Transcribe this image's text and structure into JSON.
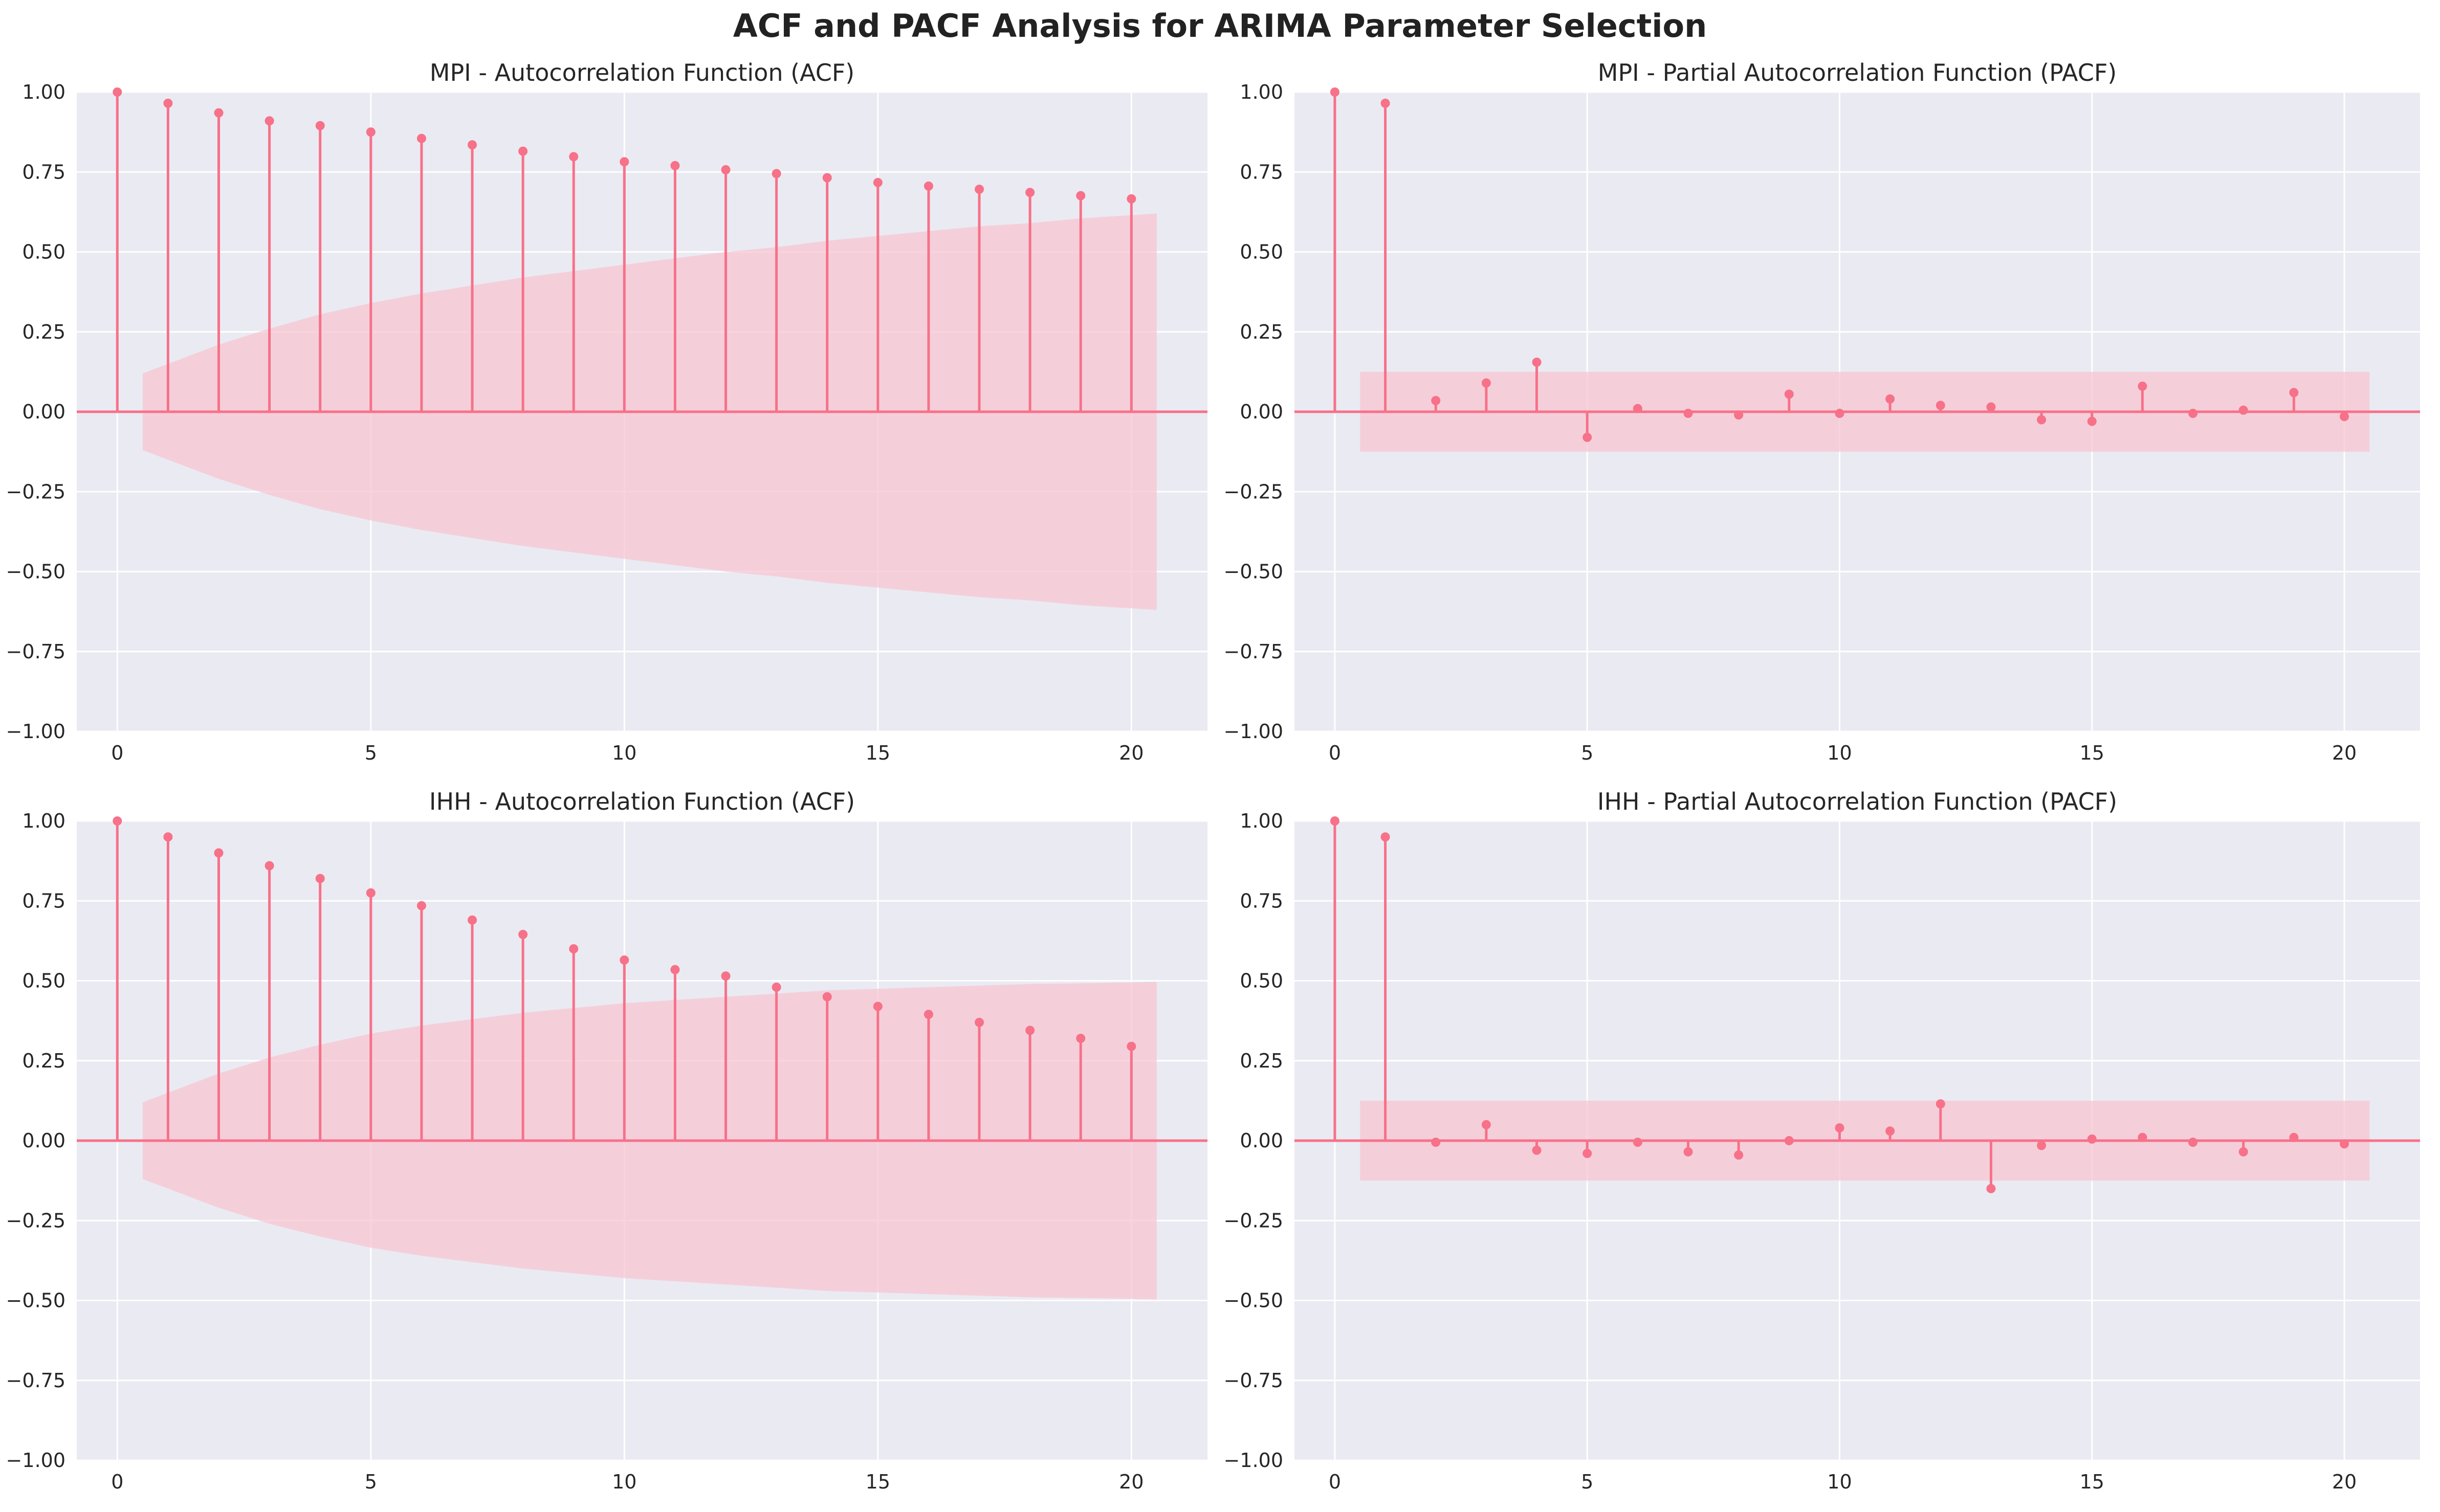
{
  "title": "ACF and PACF Analysis for ARIMA Parameter Selection",
  "colors": {
    "stem": "#f77189",
    "band": "#f7c5d2",
    "axes_bg": "#eaeaf2",
    "grid": "#ffffff"
  },
  "chart_data": [
    {
      "type": "stem",
      "title": "MPI - Autocorrelation Function (ACF)",
      "xlabel": "",
      "ylabel": "",
      "xlim": [
        -0.8,
        21.5
      ],
      "ylim": [
        -1.0,
        1.0
      ],
      "x_ticks": [
        0,
        5,
        10,
        15,
        20
      ],
      "y_ticks": [
        -1.0,
        -0.75,
        -0.5,
        -0.25,
        0.0,
        0.25,
        0.5,
        0.75,
        1.0
      ],
      "y_tick_labels": [
        "−1.00",
        "−0.75",
        "−0.50",
        "−0.25",
        "0.00",
        "0.25",
        "0.50",
        "0.75",
        "1.00"
      ],
      "x_tick_labels": [
        "0",
        "5",
        "10",
        "15",
        "20"
      ],
      "grid": true,
      "x": [
        0,
        1,
        2,
        3,
        4,
        5,
        6,
        7,
        8,
        9,
        10,
        11,
        12,
        13,
        14,
        15,
        16,
        17,
        18,
        19,
        20
      ],
      "values": [
        1.0,
        0.965,
        0.935,
        0.91,
        0.895,
        0.875,
        0.855,
        0.835,
        0.815,
        0.798,
        0.782,
        0.77,
        0.757,
        0.745,
        0.732,
        0.717,
        0.706,
        0.696,
        0.686,
        0.676,
        0.666
      ],
      "confidence_band": {
        "x": [
          0.5,
          1,
          2,
          3,
          4,
          5,
          6,
          7,
          8,
          9,
          10,
          11,
          12,
          13,
          14,
          15,
          16,
          17,
          18,
          19,
          20,
          20.5
        ],
        "upper": [
          0.12,
          0.15,
          0.21,
          0.26,
          0.305,
          0.34,
          0.37,
          0.395,
          0.42,
          0.44,
          0.46,
          0.48,
          0.5,
          0.515,
          0.535,
          0.55,
          0.565,
          0.58,
          0.59,
          0.605,
          0.615,
          0.62
        ]
      }
    },
    {
      "type": "stem",
      "title": "MPI - Partial Autocorrelation Function (PACF)",
      "xlabel": "",
      "ylabel": "",
      "xlim": [
        -0.8,
        21.5
      ],
      "ylim": [
        -1.0,
        1.0
      ],
      "x_ticks": [
        0,
        5,
        10,
        15,
        20
      ],
      "y_ticks": [
        -1.0,
        -0.75,
        -0.5,
        -0.25,
        0.0,
        0.25,
        0.5,
        0.75,
        1.0
      ],
      "y_tick_labels": [
        "−1.00",
        "−0.75",
        "−0.50",
        "−0.25",
        "0.00",
        "0.25",
        "0.50",
        "0.75",
        "1.00"
      ],
      "x_tick_labels": [
        "0",
        "5",
        "10",
        "15",
        "20"
      ],
      "grid": true,
      "x": [
        0,
        1,
        2,
        3,
        4,
        5,
        6,
        7,
        8,
        9,
        10,
        11,
        12,
        13,
        14,
        15,
        16,
        17,
        18,
        19,
        20
      ],
      "values": [
        1.0,
        0.965,
        0.035,
        0.09,
        0.155,
        -0.08,
        0.01,
        -0.005,
        -0.01,
        0.055,
        -0.005,
        0.04,
        0.02,
        0.015,
        -0.025,
        -0.03,
        0.08,
        -0.005,
        0.005,
        0.06,
        -0.015
      ],
      "confidence_band": {
        "x": [
          0.5,
          20.5
        ],
        "upper": [
          0.125,
          0.125
        ]
      }
    },
    {
      "type": "stem",
      "title": "IHH - Autocorrelation Function (ACF)",
      "xlabel": "",
      "ylabel": "",
      "xlim": [
        -0.8,
        21.5
      ],
      "ylim": [
        -1.0,
        1.0
      ],
      "x_ticks": [
        0,
        5,
        10,
        15,
        20
      ],
      "y_ticks": [
        -1.0,
        -0.75,
        -0.5,
        -0.25,
        0.0,
        0.25,
        0.5,
        0.75,
        1.0
      ],
      "y_tick_labels": [
        "−1.00",
        "−0.75",
        "−0.50",
        "−0.25",
        "0.00",
        "0.25",
        "0.50",
        "0.75",
        "1.00"
      ],
      "x_tick_labels": [
        "0",
        "5",
        "10",
        "15",
        "20"
      ],
      "grid": true,
      "x": [
        0,
        1,
        2,
        3,
        4,
        5,
        6,
        7,
        8,
        9,
        10,
        11,
        12,
        13,
        14,
        15,
        16,
        17,
        18,
        19,
        20
      ],
      "values": [
        1.0,
        0.95,
        0.9,
        0.86,
        0.82,
        0.775,
        0.735,
        0.69,
        0.645,
        0.6,
        0.565,
        0.535,
        0.515,
        0.48,
        0.45,
        0.42,
        0.395,
        0.37,
        0.345,
        0.32,
        0.295
      ],
      "confidence_band": {
        "x": [
          0.5,
          1,
          2,
          3,
          4,
          5,
          6,
          7,
          8,
          9,
          10,
          11,
          12,
          13,
          14,
          15,
          16,
          17,
          18,
          19,
          20,
          20.5
        ],
        "upper": [
          0.12,
          0.15,
          0.21,
          0.26,
          0.3,
          0.335,
          0.36,
          0.38,
          0.4,
          0.415,
          0.43,
          0.44,
          0.45,
          0.46,
          0.47,
          0.475,
          0.48,
          0.485,
          0.49,
          0.492,
          0.495,
          0.497
        ]
      }
    },
    {
      "type": "stem",
      "title": "IHH - Partial Autocorrelation Function (PACF)",
      "xlabel": "",
      "ylabel": "",
      "xlim": [
        -0.8,
        21.5
      ],
      "ylim": [
        -1.0,
        1.0
      ],
      "x_ticks": [
        0,
        5,
        10,
        15,
        20
      ],
      "y_ticks": [
        -1.0,
        -0.75,
        -0.5,
        -0.25,
        0.0,
        0.25,
        0.5,
        0.75,
        1.0
      ],
      "y_tick_labels": [
        "−1.00",
        "−0.75",
        "−0.50",
        "−0.25",
        "0.00",
        "0.25",
        "0.50",
        "0.75",
        "1.00"
      ],
      "x_tick_labels": [
        "0",
        "5",
        "10",
        "15",
        "20"
      ],
      "grid": true,
      "x": [
        0,
        1,
        2,
        3,
        4,
        5,
        6,
        7,
        8,
        9,
        10,
        11,
        12,
        13,
        14,
        15,
        16,
        17,
        18,
        19,
        20
      ],
      "values": [
        1.0,
        0.95,
        -0.005,
        0.05,
        -0.03,
        -0.04,
        -0.005,
        -0.035,
        -0.045,
        0.0,
        0.04,
        0.03,
        0.115,
        -0.15,
        -0.015,
        0.005,
        0.01,
        -0.005,
        -0.035,
        0.01,
        -0.01
      ],
      "confidence_band": {
        "x": [
          0.5,
          20.5
        ],
        "upper": [
          0.125,
          0.125
        ]
      }
    }
  ]
}
